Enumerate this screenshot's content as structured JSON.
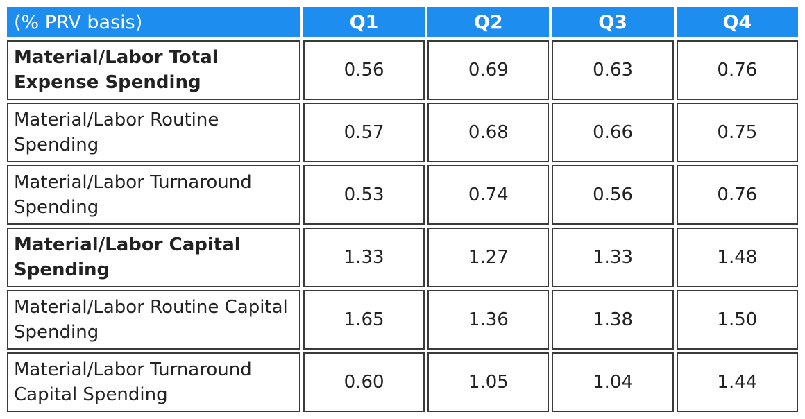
{
  "chart_data": {
    "type": "table",
    "header": [
      "(% PRV basis)",
      "Q1",
      "Q2",
      "Q3",
      "Q4"
    ],
    "rows": [
      {
        "label": "Material/Labor Total Expense Spending",
        "bold": true,
        "values": [
          "0.56",
          "0.69",
          "0.63",
          "0.76"
        ]
      },
      {
        "label": "Material/Labor Routine Spending",
        "bold": false,
        "values": [
          "0.57",
          "0.68",
          "0.66",
          "0.75"
        ]
      },
      {
        "label": "Material/Labor Turnaround Spending",
        "bold": false,
        "values": [
          "0.53",
          "0.74",
          "0.56",
          "0.76"
        ]
      },
      {
        "label": "Material/Labor Capital Spending",
        "bold": true,
        "values": [
          "1.33",
          "1.27",
          "1.33",
          "1.48"
        ]
      },
      {
        "label": "Material/Labor Routine Capital Spending",
        "bold": false,
        "values": [
          "1.65",
          "1.36",
          "1.38",
          "1.50"
        ]
      },
      {
        "label": "Material/Labor Turnaround Capital Spending",
        "bold": false,
        "values": [
          "0.60",
          "1.05",
          "1.04",
          "1.44"
        ]
      }
    ],
    "colors": {
      "header_bg": "#1e8df0",
      "header_text": "#ffffff",
      "border": "#3a3a3a"
    }
  }
}
